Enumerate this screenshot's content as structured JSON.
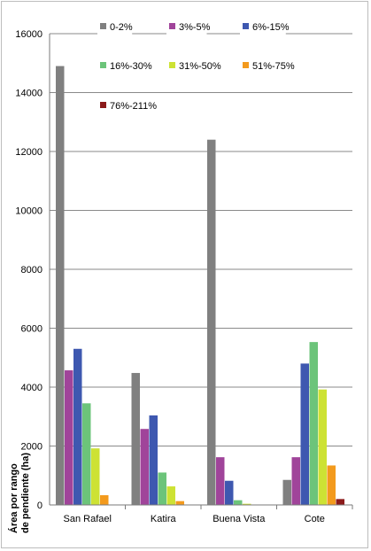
{
  "chart_data": {
    "type": "bar",
    "title": "",
    "xlabel": "",
    "ylabel": "Área por rango de pendiente (ha)",
    "ylabel_lines": [
      "Área por rango",
      "de pendiente (ha)"
    ],
    "ylim": [
      0,
      16000
    ],
    "yticks": [
      "0",
      "2000",
      "4000",
      "6000",
      "8000",
      "10000",
      "12000",
      "14000",
      "16000"
    ],
    "grid": true,
    "legend_position": "top",
    "categories": [
      "San Rafael",
      "Katira",
      "Buena Vista",
      "Cote"
    ],
    "series": [
      {
        "name": "0-2%",
        "color": "#808080",
        "values": [
          14900,
          4480,
          12400,
          850
        ]
      },
      {
        "name": "3%-5%",
        "color": "#a0449a",
        "values": [
          4570,
          2580,
          1620,
          1620
        ]
      },
      {
        "name": "6%-15%",
        "color": "#3e58b0",
        "values": [
          5300,
          3040,
          820,
          4800
        ]
      },
      {
        "name": "16%-30%",
        "color": "#6cc47a",
        "values": [
          3450,
          1100,
          160,
          5530
        ]
      },
      {
        "name": "31%-50%",
        "color": "#cde234",
        "values": [
          1920,
          630,
          40,
          3920
        ]
      },
      {
        "name": "51%-75%",
        "color": "#f39a1d",
        "values": [
          330,
          130,
          10,
          1340
        ]
      },
      {
        "name": "76%-211%",
        "color": "#8b1a1a",
        "values": [
          0,
          0,
          0,
          200
        ]
      }
    ]
  }
}
